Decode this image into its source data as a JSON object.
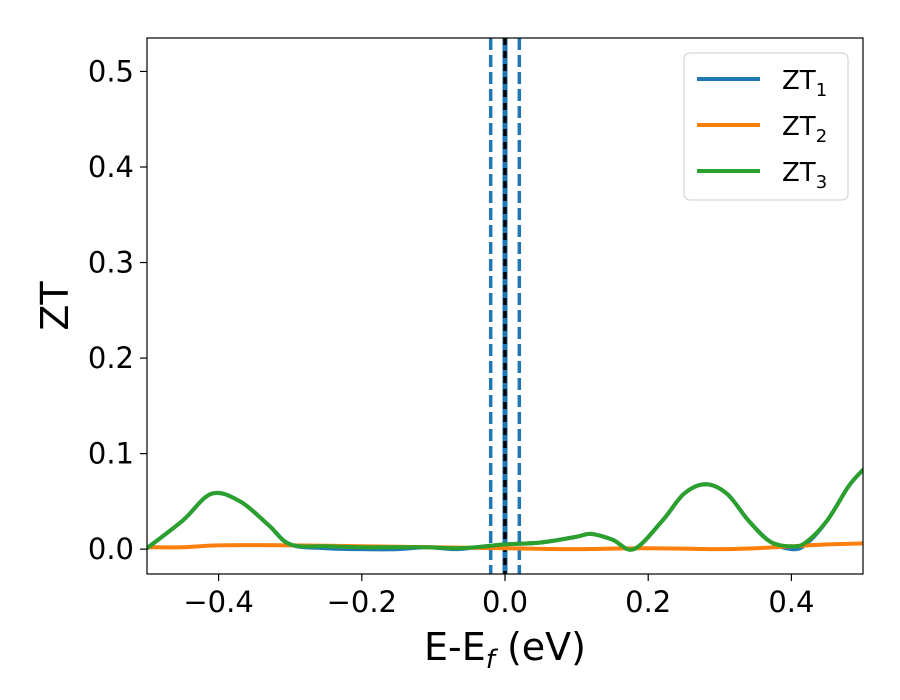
{
  "chart_data": {
    "type": "line",
    "title": "",
    "xlabel": "E-E",
    "xlabel_sub": "f",
    "xlabel_unit": " (eV)",
    "ylabel": "ZT",
    "xlim": [
      -0.5,
      0.5
    ],
    "ylim": [
      -0.026,
      0.535
    ],
    "xticks": [
      -0.4,
      -0.2,
      0.0,
      0.2,
      0.4
    ],
    "xtick_labels": [
      "−0.4",
      "−0.2",
      "0.0",
      "0.2",
      "0.4"
    ],
    "yticks": [
      0.0,
      0.1,
      0.2,
      0.3,
      0.4,
      0.5
    ],
    "ytick_labels": [
      "0.0",
      "0.1",
      "0.2",
      "0.3",
      "0.4",
      "0.5"
    ],
    "grid": false,
    "legend_position": "top-right",
    "vlines": [
      {
        "x": -0.02,
        "style": "dashed",
        "color": "#1f77b4"
      },
      {
        "x": 0.02,
        "style": "dashed",
        "color": "#1f77b4"
      },
      {
        "x": 0.0,
        "style": "solid",
        "color": "#1f77b4"
      },
      {
        "x": 0.0,
        "style": "dashed",
        "color": "#000000"
      }
    ],
    "series": [
      {
        "name": "ZT",
        "sub": "1",
        "color": "#1f77b4",
        "x": [
          -0.5,
          -0.45,
          -0.41,
          -0.37,
          -0.33,
          -0.3,
          -0.25,
          -0.2,
          -0.15,
          -0.11,
          -0.07,
          -0.04,
          0.0,
          0.05,
          0.1,
          0.12,
          0.15,
          0.18,
          0.22,
          0.25,
          0.28,
          0.31,
          0.34,
          0.37,
          0.4,
          0.42,
          0.45,
          0.48,
          0.5
        ],
        "y": [
          0.001,
          0.03,
          0.058,
          0.05,
          0.025,
          0.005,
          0.001,
          0.0,
          0.0,
          0.002,
          0.0,
          0.002,
          0.005,
          0.007,
          0.013,
          0.016,
          0.01,
          0.0,
          0.03,
          0.058,
          0.068,
          0.058,
          0.03,
          0.008,
          0.0,
          0.005,
          0.03,
          0.066,
          0.083
        ]
      },
      {
        "name": "ZT",
        "sub": "2",
        "color": "#ff7f0e",
        "x": [
          -0.5,
          -0.45,
          -0.4,
          -0.3,
          -0.2,
          -0.1,
          0.0,
          0.1,
          0.2,
          0.3,
          0.35,
          0.4,
          0.45,
          0.5
        ],
        "y": [
          0.002,
          0.002,
          0.004,
          0.004,
          0.003,
          0.002,
          0.001,
          0.0,
          0.001,
          0.0,
          0.001,
          0.003,
          0.005,
          0.006
        ]
      },
      {
        "name": "ZT",
        "sub": "3",
        "color": "#2ca02c",
        "x": [
          -0.5,
          -0.45,
          -0.41,
          -0.37,
          -0.33,
          -0.3,
          -0.25,
          -0.2,
          -0.15,
          -0.11,
          -0.07,
          -0.04,
          0.0,
          0.05,
          0.1,
          0.12,
          0.15,
          0.18,
          0.22,
          0.25,
          0.28,
          0.31,
          0.34,
          0.37,
          0.4,
          0.42,
          0.45,
          0.48,
          0.5
        ],
        "y": [
          0.001,
          0.03,
          0.058,
          0.05,
          0.025,
          0.005,
          0.003,
          0.002,
          0.002,
          0.002,
          0.001,
          0.002,
          0.005,
          0.007,
          0.013,
          0.016,
          0.01,
          0.0,
          0.03,
          0.058,
          0.068,
          0.058,
          0.03,
          0.008,
          0.003,
          0.007,
          0.03,
          0.066,
          0.083
        ]
      }
    ]
  }
}
